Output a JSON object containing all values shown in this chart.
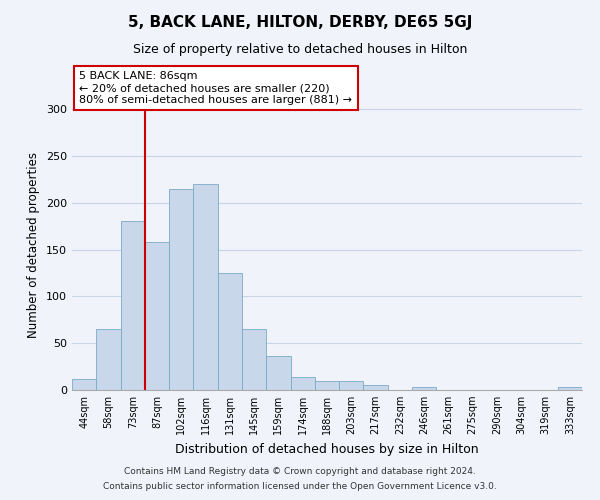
{
  "title": "5, BACK LANE, HILTON, DERBY, DE65 5GJ",
  "subtitle": "Size of property relative to detached houses in Hilton",
  "xlabel": "Distribution of detached houses by size in Hilton",
  "ylabel": "Number of detached properties",
  "footer_line1": "Contains HM Land Registry data © Crown copyright and database right 2024.",
  "footer_line2": "Contains public sector information licensed under the Open Government Licence v3.0.",
  "bin_labels": [
    "44sqm",
    "58sqm",
    "73sqm",
    "87sqm",
    "102sqm",
    "116sqm",
    "131sqm",
    "145sqm",
    "159sqm",
    "174sqm",
    "188sqm",
    "203sqm",
    "217sqm",
    "232sqm",
    "246sqm",
    "261sqm",
    "275sqm",
    "290sqm",
    "304sqm",
    "319sqm",
    "333sqm"
  ],
  "bar_heights": [
    12,
    65,
    181,
    158,
    215,
    220,
    125,
    65,
    36,
    14,
    10,
    10,
    5,
    0,
    3,
    0,
    0,
    0,
    0,
    0,
    3
  ],
  "bar_color": "#c8d8ea",
  "bar_edge_color": "#7aaac8",
  "vline_x": 3,
  "vline_color": "#cc0000",
  "annotation_title": "5 BACK LANE: 86sqm",
  "annotation_line1": "← 20% of detached houses are smaller (220)",
  "annotation_line2": "80% of semi-detached houses are larger (881) →",
  "ylim": [
    0,
    310
  ],
  "yticks": [
    0,
    50,
    100,
    150,
    200,
    250,
    300
  ],
  "background_color": "#f0f4fa",
  "grid_color": "#c8d4e8",
  "title_fontsize": 11,
  "subtitle_fontsize": 9
}
